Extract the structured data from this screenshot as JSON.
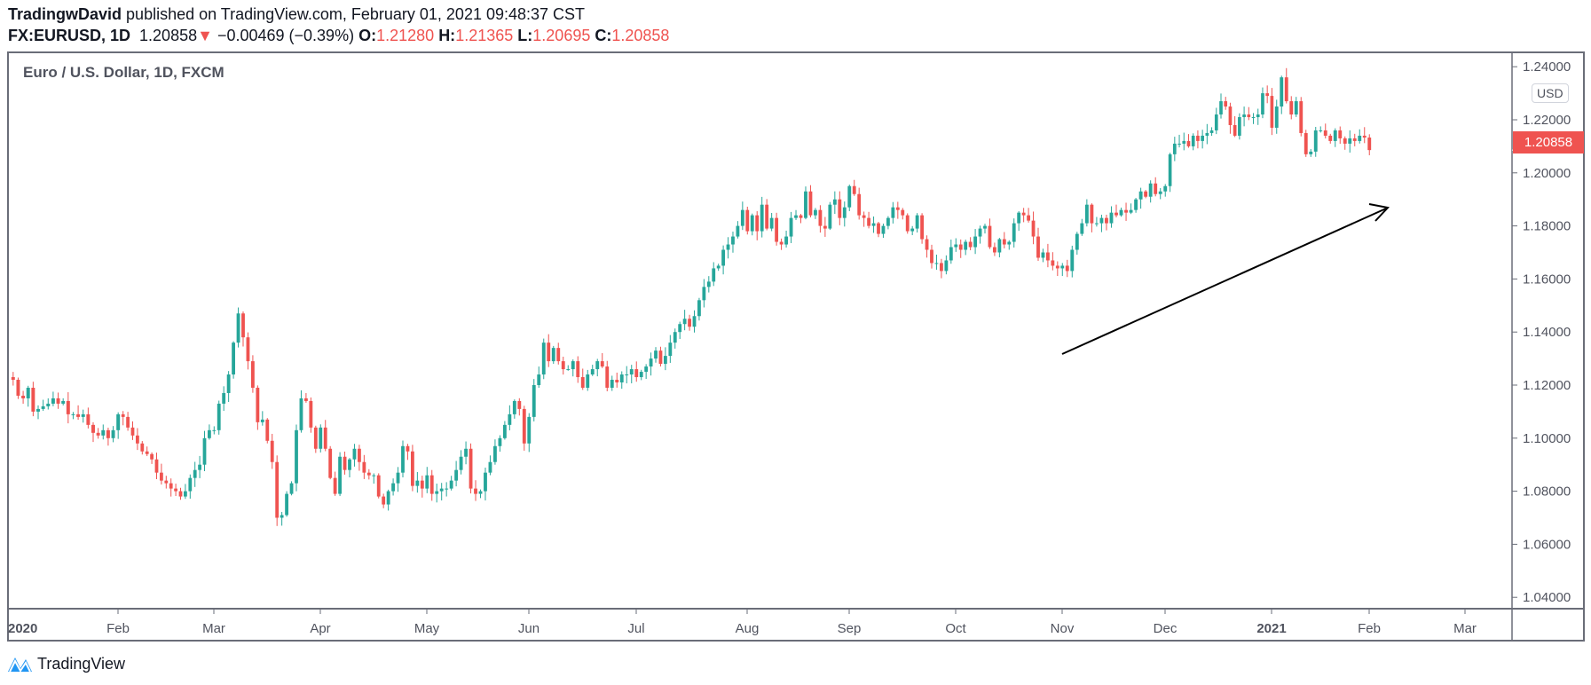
{
  "header": {
    "author": "TradingwDavid",
    "published": "published on TradingView.com, February 01, 2021 09:48:37 CST",
    "symbol": "FX:EURUSD, 1D",
    "last": "1.20858",
    "change": "−0.00469 (−0.39%)",
    "o_label": "O:",
    "o": "1.21280",
    "h_label": "H:",
    "h": "1.21365",
    "l_label": "L:",
    "l": "1.20695",
    "c_label": "C:",
    "c": "1.20858"
  },
  "legend": "Euro / U.S. Dollar, 1D, FXCM",
  "currency": "USD",
  "logo": "TradingView",
  "colors": {
    "up": "#26a69a",
    "down": "#ef5350",
    "axis": "#6a6d78"
  },
  "chart_data": {
    "type": "candlestick",
    "title": "Euro / U.S. Dollar, 1D, FXCM",
    "ylim": [
      1.03,
      1.245
    ],
    "yticks": [
      "1.24000",
      "1.22000",
      "1.20000",
      "1.18000",
      "1.16000",
      "1.14000",
      "1.12000",
      "1.10000",
      "1.08000",
      "1.06000",
      "1.04000"
    ],
    "current_price": "1.20858",
    "xticks": [
      "2020",
      "Feb",
      "Mar",
      "Apr",
      "May",
      "Jun",
      "Jul",
      "Aug",
      "Sep",
      "Oct",
      "Nov",
      "Dec",
      "2021",
      "Feb",
      "Mar"
    ],
    "annotation": "trend arrow pointing up-right",
    "months": [
      {
        "label": "Jan 2020",
        "closes": [
          1.122,
          1.116,
          1.115,
          1.119,
          1.11,
          1.111,
          1.112,
          1.113,
          1.115,
          1.113,
          1.114,
          1.109,
          1.109,
          1.108,
          1.109,
          1.105,
          1.102,
          1.101,
          1.103,
          1.1,
          1.103,
          1.109
        ]
      },
      {
        "label": "Feb 2020",
        "closes": [
          1.108,
          1.104,
          1.101,
          1.098,
          1.095,
          1.094,
          1.092,
          1.087,
          1.084,
          1.083,
          1.081,
          1.08,
          1.078,
          1.08,
          1.085,
          1.088,
          1.09,
          1.1,
          1.103,
          1.103
        ]
      },
      {
        "label": "Mar 2020",
        "closes": [
          1.113,
          1.117,
          1.124,
          1.136,
          1.147,
          1.138,
          1.129,
          1.119,
          1.106,
          1.107,
          1.099,
          1.091,
          1.07,
          1.071,
          1.079,
          1.083,
          1.103,
          1.115,
          1.114,
          1.104,
          1.096,
          1.104
        ]
      },
      {
        "label": "Apr 2020",
        "closes": [
          1.096,
          1.085,
          1.079,
          1.093,
          1.088,
          1.092,
          1.096,
          1.091,
          1.087,
          1.086,
          1.086,
          1.078,
          1.075,
          1.08,
          1.083,
          1.087,
          1.097,
          1.095,
          1.082,
          1.084,
          1.081,
          1.086
        ]
      },
      {
        "label": "May 2020",
        "closes": [
          1.079,
          1.08,
          1.081,
          1.081,
          1.084,
          1.088,
          1.093,
          1.096,
          1.081,
          1.079,
          1.08,
          1.087,
          1.091,
          1.097,
          1.1,
          1.105,
          1.109,
          1.114,
          1.111,
          1.098,
          1.108
        ]
      },
      {
        "label": "Jun 2020",
        "closes": [
          1.12,
          1.124,
          1.136,
          1.129,
          1.134,
          1.129,
          1.126,
          1.126,
          1.129,
          1.123,
          1.119,
          1.124,
          1.126,
          1.129,
          1.127,
          1.119,
          1.122,
          1.121,
          1.124,
          1.124,
          1.126,
          1.123
        ]
      },
      {
        "label": "Jul 2020",
        "closes": [
          1.125,
          1.127,
          1.13,
          1.133,
          1.128,
          1.131,
          1.136,
          1.14,
          1.143,
          1.145,
          1.142,
          1.146,
          1.152,
          1.157,
          1.159,
          1.164,
          1.165,
          1.171,
          1.173,
          1.176,
          1.18,
          1.186,
          1.178
        ]
      },
      {
        "label": "Aug 2020",
        "closes": [
          1.184,
          1.178,
          1.188,
          1.179,
          1.183,
          1.174,
          1.173,
          1.176,
          1.183,
          1.184,
          1.183,
          1.193,
          1.184,
          1.186,
          1.18,
          1.179,
          1.188,
          1.19,
          1.183,
          1.187,
          1.195
        ]
      },
      {
        "label": "Sep 2020",
        "closes": [
          1.192,
          1.184,
          1.183,
          1.18,
          1.181,
          1.177,
          1.18,
          1.183,
          1.187,
          1.186,
          1.184,
          1.178,
          1.179,
          1.184,
          1.175,
          1.171,
          1.166,
          1.166,
          1.163,
          1.167,
          1.172,
          1.173
        ]
      },
      {
        "label": "Oct 2020",
        "closes": [
          1.171,
          1.174,
          1.172,
          1.176,
          1.179,
          1.18,
          1.172,
          1.17,
          1.175,
          1.173,
          1.174,
          1.181,
          1.185,
          1.184,
          1.182,
          1.176,
          1.168,
          1.17,
          1.167,
          1.165,
          1.164,
          1.165
        ]
      },
      {
        "label": "Nov 2020",
        "closes": [
          1.163,
          1.171,
          1.177,
          1.181,
          1.188,
          1.181,
          1.181,
          1.183,
          1.181,
          1.185,
          1.184,
          1.186,
          1.185,
          1.186,
          1.19,
          1.193,
          1.191,
          1.196,
          1.192,
          1.193,
          1.195
        ]
      },
      {
        "label": "Dec 2020",
        "closes": [
          1.207,
          1.211,
          1.211,
          1.212,
          1.21,
          1.214,
          1.212,
          1.214,
          1.215,
          1.216,
          1.222,
          1.227,
          1.225,
          1.218,
          1.214,
          1.221,
          1.222,
          1.221,
          1.221,
          1.222,
          1.23,
          1.229,
          1.217
        ]
      },
      {
        "label": "Jan 2021",
        "closes": [
          1.225,
          1.236,
          1.227,
          1.222,
          1.227,
          1.215,
          1.207,
          1.208,
          1.216,
          1.216,
          1.214,
          1.212,
          1.216,
          1.213,
          1.211,
          1.213,
          1.212,
          1.214,
          1.2133,
          1.20858
        ]
      }
    ]
  }
}
